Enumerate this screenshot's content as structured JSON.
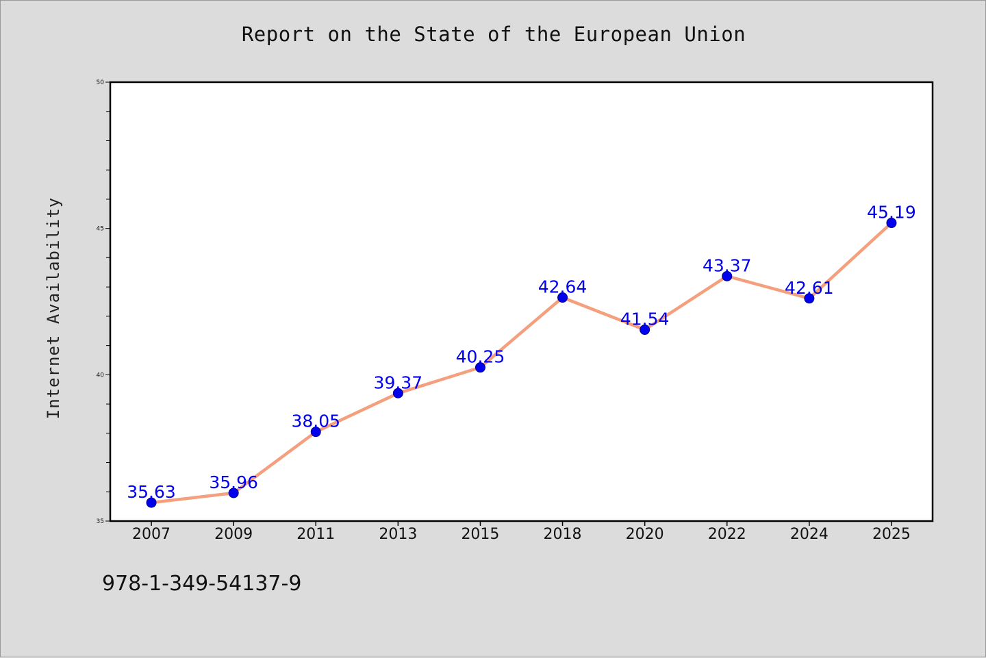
{
  "page": {
    "background": "#dcdcdc",
    "footer_code": "978-1-349-54137-9"
  },
  "chart_data": {
    "type": "line",
    "title": "Report on the State of the European Union",
    "xlabel": "",
    "ylabel": "Internet Availability",
    "categories": [
      "2007",
      "2009",
      "2011",
      "2013",
      "2015",
      "2018",
      "2020",
      "2022",
      "2024",
      "2025"
    ],
    "series": [
      {
        "values": [
          35.63,
          35.96,
          38.05,
          39.37,
          40.25,
          42.64,
          41.54,
          43.37,
          42.61,
          45.19
        ],
        "line_color": "#f4a07f",
        "marker_color": "#0000ee",
        "label_color": "#0000ee"
      }
    ],
    "ylim": [
      35,
      50
    ],
    "yticks_major": [
      "35",
      "40",
      "45",
      "50"
    ],
    "data_labels": [
      "35.63",
      "35.96",
      "38.05",
      "39.37",
      "40.25",
      "42.64",
      "41.54",
      "43.37",
      "42.61",
      "45.19"
    ],
    "grid": false
  }
}
